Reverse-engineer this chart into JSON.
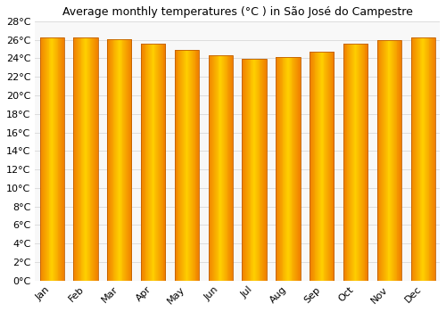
{
  "title": "Average monthly temperatures (°C ) in São José do Campestre",
  "months": [
    "Jan",
    "Feb",
    "Mar",
    "Apr",
    "May",
    "Jun",
    "Jul",
    "Aug",
    "Sep",
    "Oct",
    "Nov",
    "Dec"
  ],
  "temperatures": [
    26.3,
    26.3,
    26.1,
    25.6,
    24.9,
    24.3,
    23.9,
    24.1,
    24.7,
    25.6,
    26.0,
    26.3
  ],
  "ylim": [
    0,
    28
  ],
  "yticks": [
    0,
    2,
    4,
    6,
    8,
    10,
    12,
    14,
    16,
    18,
    20,
    22,
    24,
    26,
    28
  ],
  "bar_color_center": "#FFD000",
  "bar_color_edge": "#F08000",
  "bar_outline": "#C06000",
  "background_color": "#ffffff",
  "plot_bg_color": "#f8f8f8",
  "title_fontsize": 9,
  "tick_fontsize": 8,
  "grid_color": "#dddddd",
  "bar_width": 0.72
}
